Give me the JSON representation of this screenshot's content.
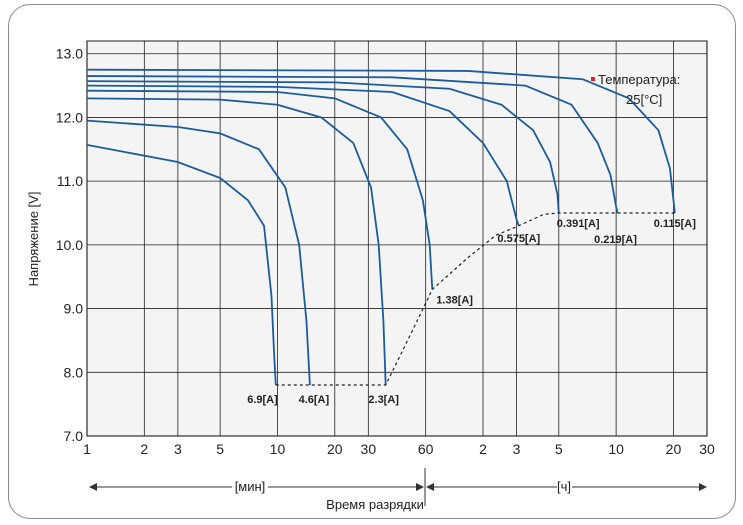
{
  "chart_data": {
    "type": "line",
    "title": "",
    "ylabel": "Напряжение [V]",
    "xlabel": "Время разрядки",
    "x_scale": "log",
    "x_unit": "minutes",
    "ylim": [
      7.0,
      13.2
    ],
    "grid": true,
    "y_ticks": [
      "7.0",
      "8.0",
      "9.0",
      "10.0",
      "11.0",
      "12.0",
      "13.0"
    ],
    "y_tick_values": [
      7.0,
      8.0,
      9.0,
      10.0,
      11.0,
      12.0,
      13.0
    ],
    "x_ticks": [
      {
        "label": "1",
        "minutes": 1
      },
      {
        "label": "2",
        "minutes": 2
      },
      {
        "label": "3",
        "minutes": 3
      },
      {
        "label": "5",
        "minutes": 5
      },
      {
        "label": "10",
        "minutes": 10
      },
      {
        "label": "20",
        "minutes": 20
      },
      {
        "label": "30",
        "minutes": 30
      },
      {
        "label": "60",
        "minutes": 60
      },
      {
        "label": "2",
        "minutes": 120
      },
      {
        "label": "3",
        "minutes": 180
      },
      {
        "label": "5",
        "minutes": 300
      },
      {
        "label": "10",
        "minutes": 600
      },
      {
        "label": "20",
        "minutes": 1200
      },
      {
        "label": "30",
        "minutes": 1800
      }
    ],
    "range_labels": {
      "minutes": "[мин]",
      "hours": "[ч]"
    },
    "annotation": {
      "line1": "Температура:",
      "line2": "25[°C]"
    },
    "line_color": "#1a5c9e",
    "cutoff_color": "#222222",
    "series": [
      {
        "name": "6.9[A]",
        "points": [
          [
            1,
            11.57
          ],
          [
            3,
            11.3
          ],
          [
            5,
            11.05
          ],
          [
            7,
            10.7
          ],
          [
            8.5,
            10.3
          ],
          [
            9.3,
            9.2
          ],
          [
            9.6,
            8.3
          ],
          [
            9.8,
            7.8
          ]
        ]
      },
      {
        "name": "4.6[A]",
        "points": [
          [
            1,
            11.95
          ],
          [
            3,
            11.85
          ],
          [
            5,
            11.75
          ],
          [
            8,
            11.5
          ],
          [
            11,
            10.9
          ],
          [
            13,
            10.0
          ],
          [
            14.2,
            8.8
          ],
          [
            14.8,
            7.8
          ]
        ]
      },
      {
        "name": "2.3[A]",
        "points": [
          [
            1,
            12.3
          ],
          [
            5,
            12.28
          ],
          [
            10,
            12.2
          ],
          [
            17,
            12.0
          ],
          [
            25,
            11.6
          ],
          [
            31,
            10.9
          ],
          [
            34,
            10.0
          ],
          [
            36,
            8.8
          ],
          [
            37,
            7.8
          ]
        ]
      },
      {
        "name": "1.38[A]",
        "points": [
          [
            1,
            12.42
          ],
          [
            10,
            12.4
          ],
          [
            20,
            12.3
          ],
          [
            35,
            12.0
          ],
          [
            48,
            11.5
          ],
          [
            58,
            10.7
          ],
          [
            63,
            10.0
          ],
          [
            65,
            9.3
          ]
        ]
      },
      {
        "name": "0.575[A]",
        "points": [
          [
            1,
            12.5
          ],
          [
            10,
            12.48
          ],
          [
            40,
            12.4
          ],
          [
            80,
            12.1
          ],
          [
            120,
            11.6
          ],
          [
            160,
            11.0
          ],
          [
            180,
            10.4
          ],
          [
            185,
            10.3
          ]
        ]
      },
      {
        "name": "0.391[A]",
        "points": [
          [
            1,
            12.57
          ],
          [
            20,
            12.55
          ],
          [
            80,
            12.45
          ],
          [
            150,
            12.2
          ],
          [
            220,
            11.8
          ],
          [
            270,
            11.3
          ],
          [
            295,
            10.8
          ],
          [
            300,
            10.5
          ]
        ]
      },
      {
        "name": "0.219[A]",
        "points": [
          [
            1,
            12.65
          ],
          [
            40,
            12.63
          ],
          [
            200,
            12.5
          ],
          [
            350,
            12.2
          ],
          [
            480,
            11.6
          ],
          [
            560,
            11.1
          ],
          [
            600,
            10.6
          ],
          [
            610,
            10.5
          ]
        ]
      },
      {
        "name": "0.115[A]",
        "points": [
          [
            1,
            12.75
          ],
          [
            100,
            12.73
          ],
          [
            400,
            12.6
          ],
          [
            700,
            12.3
          ],
          [
            1000,
            11.8
          ],
          [
            1150,
            11.2
          ],
          [
            1200,
            10.7
          ],
          [
            1220,
            10.5
          ]
        ]
      }
    ],
    "cutoff_line": [
      [
        9.8,
        7.8
      ],
      [
        37,
        7.8
      ],
      [
        52,
        8.7
      ],
      [
        65,
        9.3
      ],
      [
        100,
        9.8
      ],
      [
        140,
        10.15
      ],
      [
        185,
        10.3
      ],
      [
        250,
        10.48
      ],
      [
        300,
        10.5
      ],
      [
        610,
        10.5
      ],
      [
        1220,
        10.5
      ]
    ],
    "curve_labels": [
      {
        "text": "6.9[A]",
        "minutes": 9.8,
        "v": 7.8,
        "anchor": "end",
        "dx": 2,
        "dy": 18
      },
      {
        "text": "4.6[A]",
        "minutes": 14.8,
        "v": 7.8,
        "anchor": "middle",
        "dx": 4,
        "dy": 18
      },
      {
        "text": "2.3[A]",
        "minutes": 37,
        "v": 7.8,
        "anchor": "middle",
        "dx": -2,
        "dy": 18
      },
      {
        "text": "1.38[A]",
        "minutes": 65,
        "v": 9.3,
        "anchor": "start",
        "dx": 4,
        "dy": 14
      },
      {
        "text": "0.575[A]",
        "minutes": 185,
        "v": 10.3,
        "anchor": "middle",
        "dx": 0,
        "dy": 16
      },
      {
        "text": "0.391[A]",
        "minutes": 300,
        "v": 10.5,
        "anchor": "start",
        "dx": -2,
        "dy": 14
      },
      {
        "text": "0.219[A]",
        "minutes": 610,
        "v": 10.5,
        "anchor": "middle",
        "dx": -2,
        "dy": 30
      },
      {
        "text": "0.115[A]",
        "minutes": 1220,
        "v": 10.5,
        "anchor": "middle",
        "dx": 0,
        "dy": 14
      }
    ]
  }
}
